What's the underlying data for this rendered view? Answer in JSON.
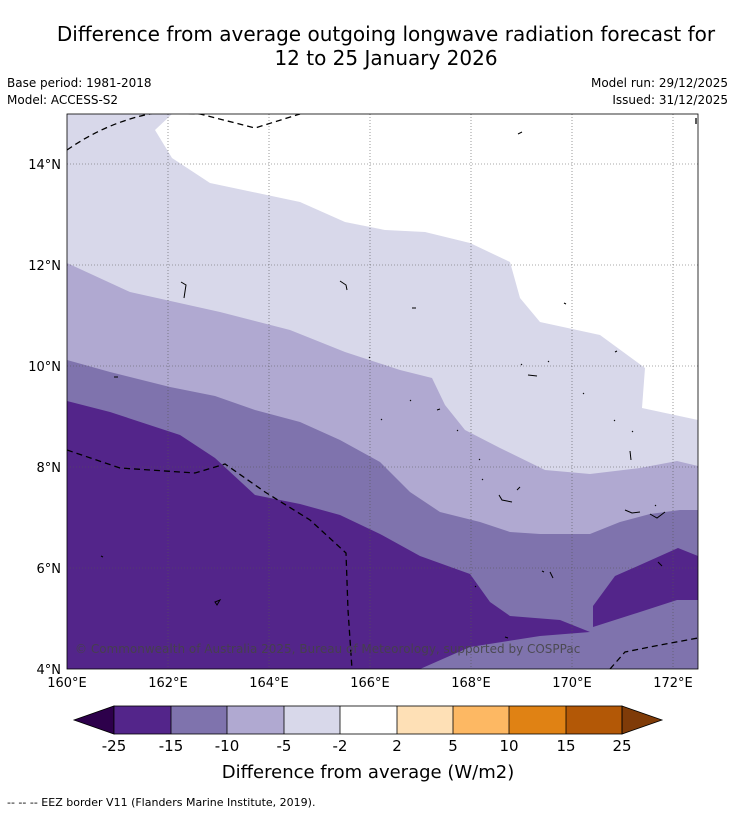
{
  "title": {
    "line1": "Difference from average outgoing longwave radiation forecast for",
    "line2": "12 to 25 January 2026"
  },
  "meta": {
    "base_period": "Base period: 1981-2018",
    "model": "Model: ACCESS-S2",
    "model_run": "Model run: 29/12/2025",
    "issued": "Issued: 31/12/2025"
  },
  "map": {
    "lat_labels": [
      "4°N",
      "6°N",
      "8°N",
      "10°N",
      "12°N",
      "14°N"
    ],
    "lon_labels": [
      "160°E",
      "162°E",
      "164°E",
      "166°E",
      "168°E",
      "170°E",
      "172°E"
    ],
    "copyright": "© Commonwealth of Australia 2025, Bureau of Meteorology, supported by COSPPac",
    "fills": {
      "c_m25_m15": "#53258a",
      "c_m15_m10": "#7f73ad",
      "c_m10_m5": "#b0a9d1",
      "c_m5_m2": "#d8d8ea",
      "c_m2_2": "#ffffff"
    }
  },
  "colorbar": {
    "ticks": [
      "-25",
      "-15",
      "-10",
      "-5",
      "-2",
      "2",
      "5",
      "10",
      "15",
      "25"
    ],
    "colors": [
      "#2d004b",
      "#53258a",
      "#7f73ad",
      "#b0a9d1",
      "#d8d8ea",
      "#ffffff",
      "#fee0b6",
      "#fdb863",
      "#e08214",
      "#b35806",
      "#7f3b08"
    ],
    "label": "Difference from average (W/m2)"
  },
  "legend": {
    "eez_text": "--  --  -- EEZ border V11 (Flanders Marine Institute, 2019)."
  }
}
